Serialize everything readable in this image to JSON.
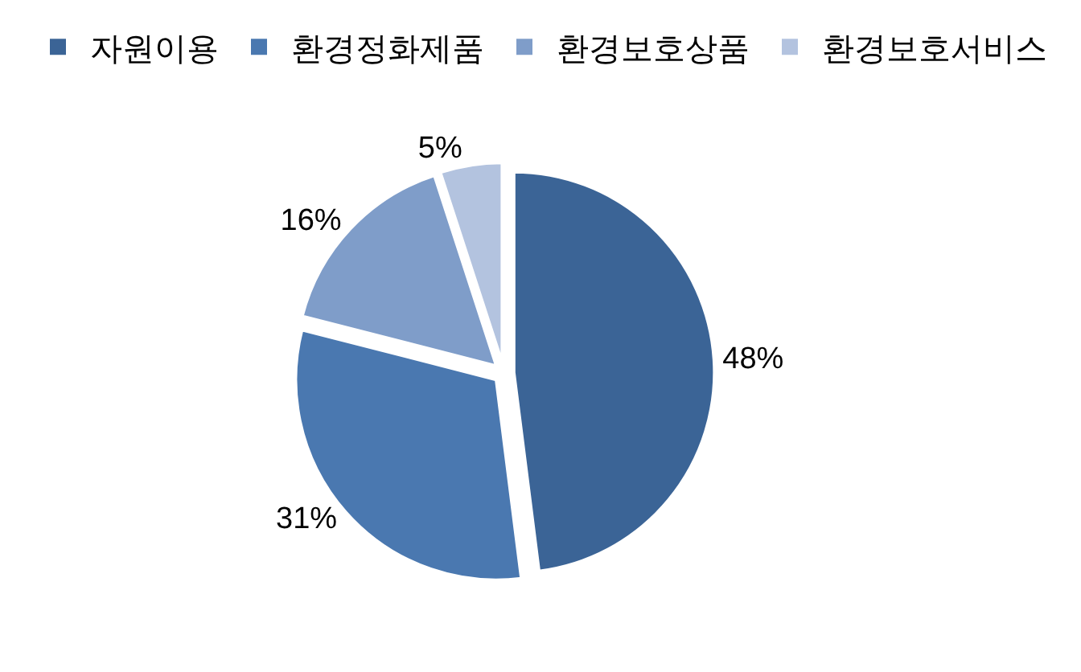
{
  "chart_data": {
    "type": "pie",
    "categories": [
      "자원이용",
      "환경정화제품",
      "환경보호상품",
      "환경보호서비스"
    ],
    "values": [
      48,
      31,
      16,
      5
    ],
    "value_labels": [
      "48%",
      "31%",
      "16%",
      "5%"
    ],
    "colors": [
      "#3b6496",
      "#4a78b0",
      "#7f9dc9",
      "#b3c3df"
    ],
    "legend": "top"
  }
}
